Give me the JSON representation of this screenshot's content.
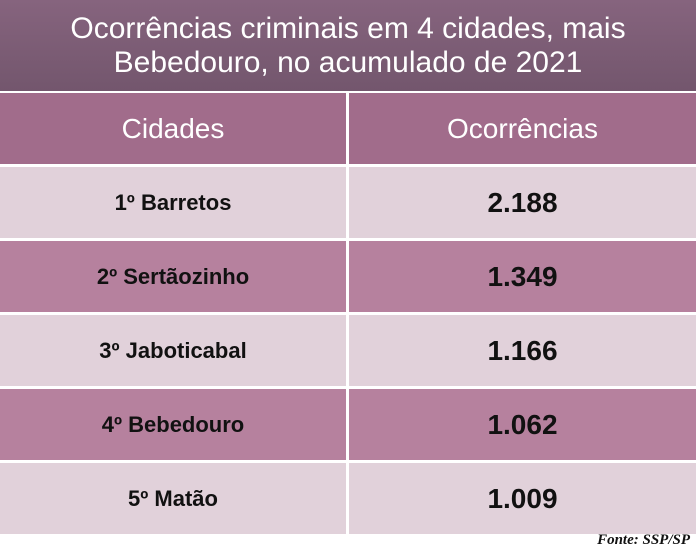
{
  "title": "Ocorrências criminais em 4 cidades, mais Bebedouro, no acumulado de 2021",
  "table": {
    "header": [
      "Cidades",
      "Ocorrências"
    ],
    "rows": [
      [
        "1º Barretos",
        "2.188"
      ],
      [
        "2º Sertãozinho",
        "1.349"
      ],
      [
        "3º Jaboticabal",
        "1.166"
      ],
      [
        "4º Bebedouro",
        "1.062"
      ],
      [
        "5º Matão",
        "1.009"
      ]
    ]
  },
  "source": "Fonte: SSP/SP"
}
